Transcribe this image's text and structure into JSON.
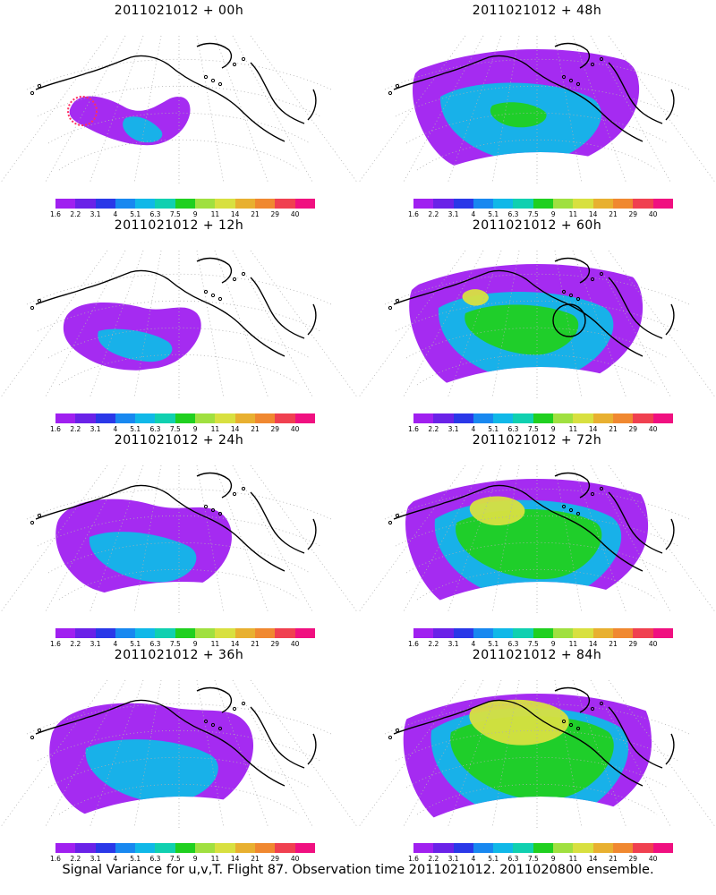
{
  "panels": [
    {
      "title": "2011021012 + 00h",
      "level": 0
    },
    {
      "title": "2011021012 + 48h",
      "level": 4
    },
    {
      "title": "2011021012 + 12h",
      "level": 1
    },
    {
      "title": "2011021012 + 60h",
      "level": 5
    },
    {
      "title": "2011021012 + 24h",
      "level": 2
    },
    {
      "title": "2011021012 + 72h",
      "level": 6
    },
    {
      "title": "2011021012 + 36h",
      "level": 3
    },
    {
      "title": "2011021012 + 84h",
      "level": 7
    }
  ],
  "colorbar": {
    "labels": [
      "1.6",
      "2.2",
      "3.1",
      "4",
      "5.1",
      "6.3",
      "7.5",
      "9",
      "11",
      "14",
      "21",
      "29",
      "40"
    ],
    "colors": [
      "#a020f0",
      "#6a22e8",
      "#2a38e8",
      "#1888f0",
      "#10b8e8",
      "#10d0b0",
      "#20d020",
      "#a0e040",
      "#d8e040",
      "#e8b030",
      "#f08830",
      "#f04050",
      "#f01080"
    ]
  },
  "caption": "Signal Variance for u,v,T. Flight 87. Observation time 2011021012. 2011020800 ensemble.",
  "map": {
    "land_outline_color": "#000000",
    "graticule_color": "#b0b0b0",
    "observation_marker_color": "#ff3060",
    "circle_marker_color": "#000000"
  }
}
